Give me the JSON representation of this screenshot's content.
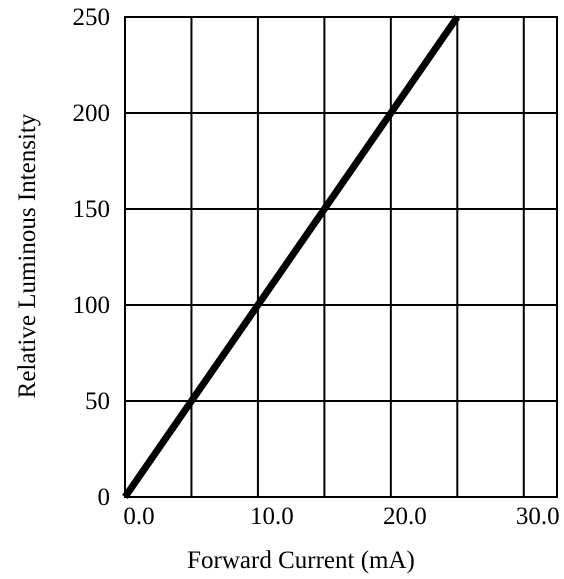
{
  "chart_data": {
    "type": "line",
    "title": "",
    "xlabel": "Forward Current (mA)",
    "ylabel": "Relative Luminous Intensity",
    "xlim": [
      0,
      32.5
    ],
    "ylim": [
      0,
      250
    ],
    "grid": true,
    "x_tick_values": [
      0,
      5,
      10,
      15,
      20,
      25,
      30
    ],
    "x_tick_labels": [
      "0.0",
      "",
      "10.0",
      "",
      "20.0",
      "",
      "30.0"
    ],
    "y_tick_values": [
      0,
      50,
      100,
      150,
      200,
      250
    ],
    "y_tick_labels": [
      "0",
      "50",
      "100",
      "150",
      "200",
      "250"
    ],
    "series": [
      {
        "x": [
          0,
          25.0
        ],
        "y": [
          0,
          250
        ],
        "color": "#000000"
      }
    ]
  }
}
